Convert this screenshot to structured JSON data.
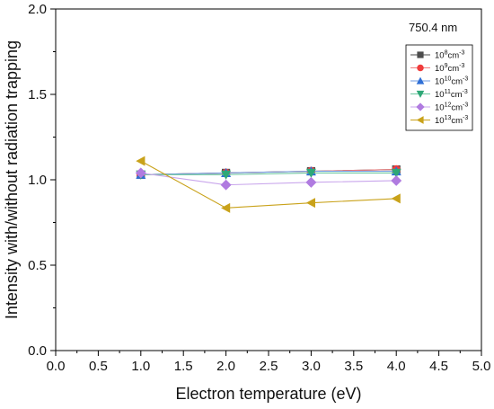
{
  "chart_data": {
    "type": "line",
    "title": "",
    "annotation": "750.4 nm",
    "xlabel": "Electron temperature (eV)",
    "ylabel": "Intensity with/without radiation trapping",
    "xlim": [
      0.0,
      5.0
    ],
    "ylim": [
      0.0,
      2.0
    ],
    "xticks": [
      "0.0",
      "0.5",
      "1.0",
      "1.5",
      "2.0",
      "2.5",
      "3.0",
      "3.5",
      "4.0",
      "4.5",
      "5.0"
    ],
    "yticks": [
      "0.0",
      "0.5",
      "1.0",
      "1.5",
      "2.0"
    ],
    "legend_position": "top-right",
    "grid": false,
    "series": [
      {
        "name_base": "10",
        "name_exp": "8",
        "name_unit": "cm",
        "name_unit_exp": "-3",
        "marker": "square",
        "color": "#4d4d4d",
        "line_color": "#4d4d4d",
        "x": [
          1.0,
          2.0,
          3.0,
          4.0
        ],
        "y": [
          1.03,
          1.04,
          1.05,
          1.06
        ]
      },
      {
        "name_base": "10",
        "name_exp": "9",
        "name_unit": "cm",
        "name_unit_exp": "-3",
        "marker": "circle",
        "color": "#f03c3c",
        "line_color": "#f08080",
        "x": [
          1.0,
          2.0,
          3.0,
          4.0
        ],
        "y": [
          1.03,
          1.04,
          1.05,
          1.06
        ]
      },
      {
        "name_base": "10",
        "name_exp": "10",
        "name_unit": "cm",
        "name_unit_exp": "-3",
        "marker": "triangle-up",
        "color": "#2f6fd6",
        "line_color": "#6f9be0",
        "x": [
          1.0,
          2.0,
          3.0,
          4.0
        ],
        "y": [
          1.03,
          1.04,
          1.05,
          1.05
        ]
      },
      {
        "name_base": "10",
        "name_exp": "11",
        "name_unit": "cm",
        "name_unit_exp": "-3",
        "marker": "triangle-down",
        "color": "#2ea877",
        "line_color": "#6cc79f",
        "x": [
          1.0,
          2.0,
          3.0,
          4.0
        ],
        "y": [
          1.03,
          1.03,
          1.04,
          1.04
        ]
      },
      {
        "name_base": "10",
        "name_exp": "12",
        "name_unit": "cm",
        "name_unit_exp": "-3",
        "marker": "diamond",
        "color": "#b07be0",
        "line_color": "#c9a6ec",
        "x": [
          1.0,
          2.0,
          3.0,
          4.0
        ],
        "y": [
          1.04,
          0.97,
          0.985,
          0.995
        ]
      },
      {
        "name_base": "10",
        "name_exp": "13",
        "name_unit": "cm",
        "name_unit_exp": "-3",
        "marker": "triangle-left",
        "color": "#c9a21a",
        "line_color": "#c9a21a",
        "x": [
          1.0,
          2.0,
          3.0,
          4.0
        ],
        "y": [
          1.11,
          0.835,
          0.865,
          0.89
        ]
      }
    ]
  }
}
